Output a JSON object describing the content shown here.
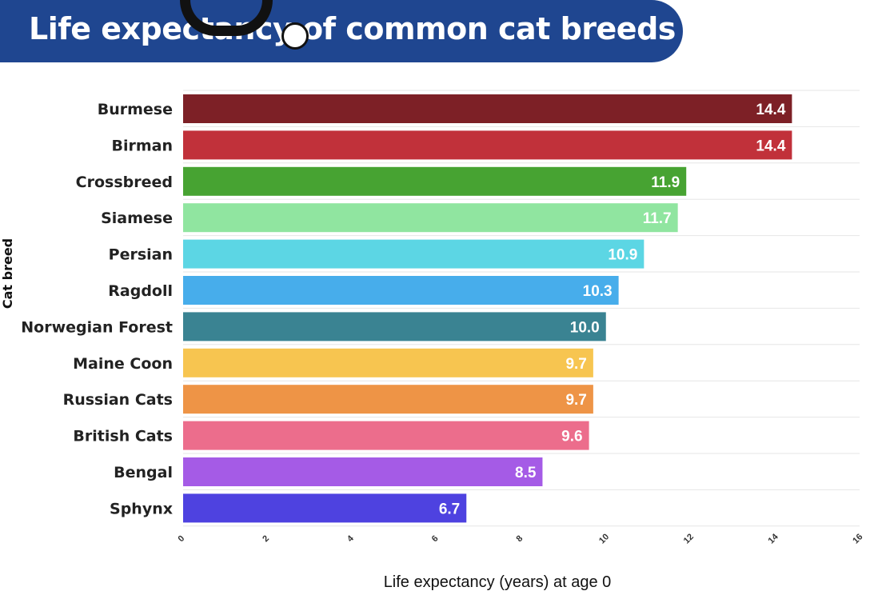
{
  "header": {
    "title": "Life expectancy of common cat breeds"
  },
  "chart_data": {
    "type": "bar",
    "orientation": "horizontal",
    "title": "Life expectancy of common cat breeds",
    "xlabel": "Life expectancy (years) at age 0",
    "ylabel": "Cat breed",
    "xlim": [
      0,
      16
    ],
    "xticks": [
      0,
      2,
      4,
      6,
      8,
      10,
      12,
      14,
      16
    ],
    "grid": true,
    "categories": [
      "Burmese",
      "Birman",
      "Crossbreed",
      "Siamese",
      "Persian",
      "Ragdoll",
      "Norwegian Forest",
      "Maine Coon",
      "Russian Cats",
      "British Cats",
      "Bengal",
      "Sphynx"
    ],
    "values": [
      14.4,
      14.4,
      11.9,
      11.7,
      10.9,
      10.3,
      10.0,
      9.7,
      9.7,
      9.6,
      8.5,
      6.7
    ],
    "value_labels": [
      "14.4",
      "14.4",
      "11.9",
      "11.7",
      "10.9",
      "10.3",
      "10.0",
      "9.7",
      "9.7",
      "9.6",
      "8.5",
      "6.7"
    ],
    "colors": [
      "#7d2026",
      "#c1313a",
      "#47a332",
      "#90e5a0",
      "#5cd6e4",
      "#47adeb",
      "#3a8392",
      "#f7c550",
      "#ee9446",
      "#ec6d8c",
      "#a55be6",
      "#4e42e0"
    ]
  }
}
